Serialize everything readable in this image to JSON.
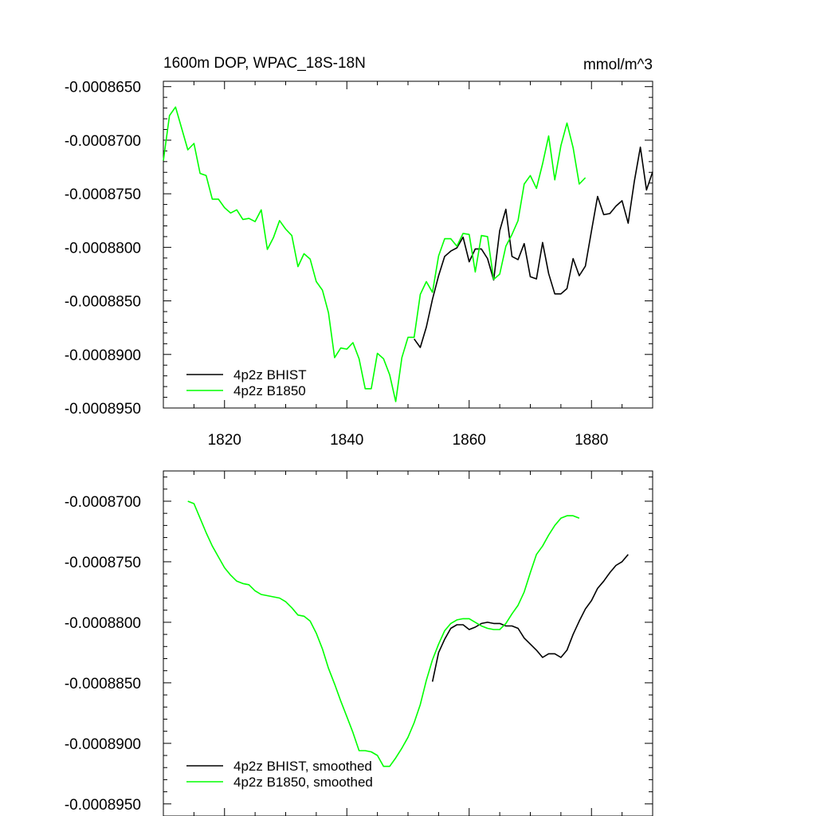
{
  "chart_data": [
    {
      "type": "line",
      "title": "1600m DOP, WPAC_18S-18N",
      "units": "mmol/m^3",
      "xlim": [
        1810,
        1890
      ],
      "ylim": [
        -0.000895,
        -0.0008645
      ],
      "xticks": [
        {
          "v": 1820,
          "label": "1820"
        },
        {
          "v": 1840,
          "label": "1840"
        },
        {
          "v": 1860,
          "label": "1860"
        },
        {
          "v": 1880,
          "label": "1880"
        }
      ],
      "yticks": [
        {
          "v": -0.000865,
          "label": "-0.0008650"
        },
        {
          "v": -0.00087,
          "label": "-0.0008700"
        },
        {
          "v": -0.000875,
          "label": "-0.0008750"
        },
        {
          "v": -0.00088,
          "label": "-0.0008800"
        },
        {
          "v": -0.000885,
          "label": "-0.0008850"
        },
        {
          "v": -0.00089,
          "label": "-0.0008900"
        },
        {
          "v": -0.000895,
          "label": "-0.0008950"
        }
      ],
      "legend_position": "bottom-left",
      "series": [
        {
          "name": "4p2z BHIST",
          "color": "#000000",
          "x0": 1851,
          "values": [
            -0.00088855,
            -0.00088935,
            -0.00088745,
            -0.00088485,
            -0.00088265,
            -0.00088085,
            -0.00088035,
            -0.00088005,
            -0.00087905,
            -0.00088135,
            -0.00088015,
            -0.00088015,
            -0.00088105,
            -0.00088305,
            -0.00087845,
            -0.00087645,
            -0.00088085,
            -0.00088115,
            -0.00087965,
            -0.00088275,
            -0.00088295,
            -0.00087955,
            -0.00088245,
            -0.00088435,
            -0.00088435,
            -0.00088385,
            -0.00088105,
            -0.00088265,
            -0.00088175,
            -0.00087845,
            -0.00087525,
            -0.00087695,
            -0.00087685,
            -0.00087615,
            -0.00087565,
            -0.00087775,
            -0.00087385,
            -0.00087065,
            -0.00087465,
            -0.00087295
          ]
        },
        {
          "name": "4p2z B1850",
          "color": "#00ff00",
          "x0": 1810,
          "values": [
            -0.0008719,
            -0.0008677,
            -0.0008669,
            -0.0008689,
            -0.0008709,
            -0.0008703,
            -0.0008731,
            -0.0008733,
            -0.0008755,
            -0.0008755,
            -0.0008763,
            -0.0008768,
            -0.0008765,
            -0.0008774,
            -0.0008773,
            -0.0008776,
            -0.0008765,
            -0.0008802,
            -0.0008791,
            -0.0008775,
            -0.0008783,
            -0.0008789,
            -0.0008818,
            -0.0008806,
            -0.0008811,
            -0.0008832,
            -0.000884,
            -0.0008861,
            -0.0008903,
            -0.0008894,
            -0.0008895,
            -0.0008889,
            -0.0008904,
            -0.0008932,
            -0.0008932,
            -0.0008899,
            -0.0008904,
            -0.0008919,
            -0.0008944,
            -0.0008903,
            -0.0008884,
            -0.0008884,
            -0.0008844,
            -0.0008832,
            -0.0008842,
            -0.0008808,
            -0.0008792,
            -0.0008792,
            -0.0008799,
            -0.0008787,
            -0.0008788,
            -0.0008823,
            -0.0008789,
            -0.000879,
            -0.000883,
            -0.0008825,
            -0.0008799,
            -0.0008788,
            -0.0008775,
            -0.0008741,
            -0.0008733,
            -0.0008745,
            -0.0008722,
            -0.0008696,
            -0.0008737,
            -0.0008705,
            -0.0008684,
            -0.0008707,
            -0.0008741,
            -0.0008735
          ]
        }
      ]
    },
    {
      "type": "line",
      "xlim": [
        1810,
        1890
      ],
      "ylim": [
        -0.000896,
        -0.0008675
      ],
      "xticks": [
        {
          "v": 1820,
          "label": ""
        },
        {
          "v": 1840,
          "label": ""
        },
        {
          "v": 1860,
          "label": ""
        },
        {
          "v": 1880,
          "label": ""
        }
      ],
      "yticks": [
        {
          "v": -0.00087,
          "label": "-0.0008700"
        },
        {
          "v": -0.000875,
          "label": "-0.0008750"
        },
        {
          "v": -0.00088,
          "label": "-0.0008800"
        },
        {
          "v": -0.000885,
          "label": "-0.0008850"
        },
        {
          "v": -0.00089,
          "label": "-0.0008900"
        },
        {
          "v": -0.000895,
          "label": "-0.0008950"
        }
      ],
      "legend_position": "bottom-left",
      "series": [
        {
          "name": "4p2z BHIST, smoothed",
          "color": "#000000",
          "x0": 1854,
          "values": [
            -0.0008849,
            -0.0008825,
            -0.0008814,
            -0.0008805,
            -0.0008802,
            -0.0008802,
            -0.0008806,
            -0.0008804,
            -0.0008801,
            -0.00088,
            -0.0008801,
            -0.0008801,
            -0.0008803,
            -0.0008803,
            -0.0008805,
            -0.0008813,
            -0.0008818,
            -0.0008823,
            -0.0008829,
            -0.0008826,
            -0.0008826,
            -0.0008829,
            -0.0008823,
            -0.000881,
            -0.0008799,
            -0.0008789,
            -0.0008782,
            -0.0008772,
            -0.0008766,
            -0.0008759,
            -0.0008753,
            -0.000875,
            -0.0008744
          ]
        },
        {
          "name": "4p2z B1850, smoothed",
          "color": "#00ff00",
          "x0": 1814,
          "values": [
            -0.00087,
            -0.0008702,
            -0.0008714,
            -0.0008726,
            -0.0008737,
            -0.0008746,
            -0.0008755,
            -0.0008761,
            -0.0008766,
            -0.0008768,
            -0.0008769,
            -0.0008774,
            -0.0008777,
            -0.0008778,
            -0.0008779,
            -0.000878,
            -0.0008783,
            -0.0008788,
            -0.0008794,
            -0.0008795,
            -0.0008799,
            -0.0008809,
            -0.0008822,
            -0.0008838,
            -0.0008851,
            -0.0008865,
            -0.0008878,
            -0.0008891,
            -0.0008906,
            -0.0008906,
            -0.0008907,
            -0.000891,
            -0.0008919,
            -0.0008919,
            -0.0008912,
            -0.0008904,
            -0.0008895,
            -0.0008883,
            -0.0008868,
            -0.0008848,
            -0.0008831,
            -0.0008818,
            -0.0008807,
            -0.0008801,
            -0.0008798,
            -0.0008797,
            -0.0008797,
            -0.00088,
            -0.0008803,
            -0.0008805,
            -0.0008806,
            -0.0008806,
            -0.0008801,
            -0.0008793,
            -0.0008786,
            -0.0008775,
            -0.0008759,
            -0.0008744,
            -0.0008737,
            -0.0008728,
            -0.000872,
            -0.0008714,
            -0.0008712,
            -0.0008712,
            -0.0008714
          ]
        }
      ]
    }
  ]
}
